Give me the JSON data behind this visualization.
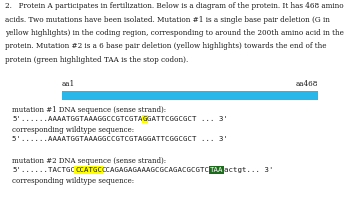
{
  "title_line1": "2.   Protein A participates in fertilization. Below is a diagram of the protein. It has 468 amino",
  "title_line2": "acids. Two mutations have been isolated. Mutation #1 is a single base pair deletion (G in",
  "title_line3": "yellow highlights) in the coding region, corresponding to around the 200th amino acid in the",
  "title_line4": "protein. Mutation #2 is a 6 base pair deletion (yellow highlights) towards the end of the",
  "title_line5": "protein (green highlighted TAA is the stop codon).",
  "aa1_label": "aa1",
  "aa468_label": "aa468",
  "bar_color": "#29b6e8",
  "mut1_header": "mutation #1 DNA sequence (sense strand):",
  "mut1_seq_pre": "5'......AAAATGGTAAAGGCCGTCGTA",
  "mut1_seq_yellow": "G",
  "mut1_seq_post": "GATTCGGCGCT ... 3'",
  "mut1_wt_header": "corresponding wildtype sequence:",
  "mut1_wt_seq": "5'......AAAATGGTAAAGGCCGTCGTAGGATTCGGCGCT ... 3'",
  "mut2_header": "mutation #2 DNA sequence (sense strand):",
  "mut2_seq_pre": "5'......TACTGC",
  "mut2_seq_yellow": "CCATGC",
  "mut2_seq_mid": "CCAGAGAGAAAGCGCAGACGCGTC",
  "mut2_seq_green": "TAA",
  "mut2_seq_post": "actgt... 3'",
  "mut2_wt_header": "corresponding wildtype sequence:",
  "bg_color": "#ffffff",
  "text_color": "#1a1a1a",
  "title_fs": 5.2,
  "label_fs": 5.2,
  "header_fs": 5.0,
  "seq_fs": 5.3
}
